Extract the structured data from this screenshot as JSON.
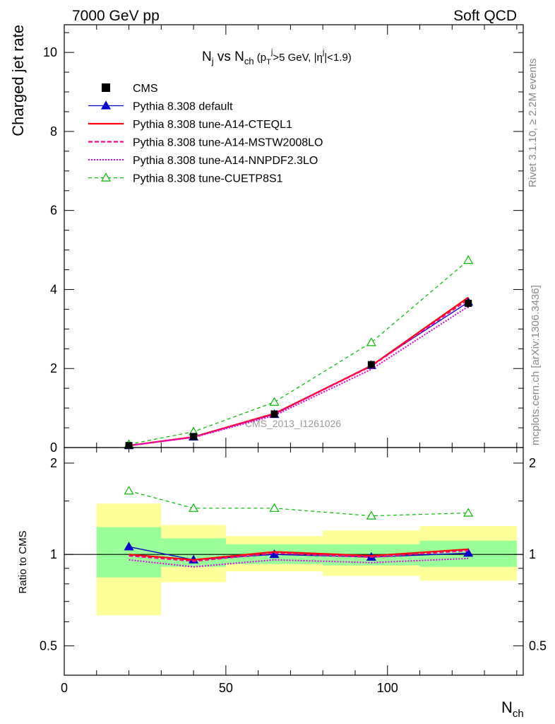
{
  "header": {
    "energy_label": "7000 GeV pp",
    "process_label": "Soft QCD"
  },
  "side_labels": {
    "rivet": "Rivet 3.1.10, ≥ 2.2M events",
    "mcplots": "mcplots.cern.ch [arXiv:1306.3436]"
  },
  "watermark": "CMS_2013_I1261026",
  "chart_data": [
    {
      "type": "line",
      "title_parts": {
        "n": "N",
        "j_sub": "j",
        "vs": " vs N",
        "ch_sub": "ch",
        "open": " (p",
        "t_sub": "T",
        "j_sup": "j",
        "gt": ">5 GeV, |η",
        "eta_sup": "j",
        "close": "|<1.9)"
      },
      "ylabel": "Charged jet rate",
      "xlim": [
        0,
        142
      ],
      "ylim": [
        0,
        10.7
      ],
      "y_ticks": [
        "0",
        "2",
        "4",
        "6",
        "8",
        "10"
      ],
      "x": [
        20,
        40,
        65,
        95,
        125
      ],
      "data": {
        "name": "CMS",
        "values": [
          0.05,
          0.28,
          0.85,
          2.1,
          3.65
        ],
        "errors": [
          0.01,
          0.02,
          0.04,
          0.08,
          0.12
        ]
      },
      "series": [
        {
          "name": "Pythia 8.308 default",
          "color": "#0000cc",
          "values": [
            0.053,
            0.27,
            0.84,
            2.08,
            3.68
          ]
        },
        {
          "name": "Pythia 8.308 tune-A14-CTEQL1",
          "color": "#ff0000",
          "values": [
            0.05,
            0.27,
            0.86,
            2.07,
            3.8
          ]
        },
        {
          "name": "Pythia 8.308 tune-A14-MSTW2008LO",
          "color": "#ff0088",
          "values": [
            0.049,
            0.265,
            0.85,
            2.06,
            3.75
          ]
        },
        {
          "name": "Pythia 8.308 tune-A14-NNPDF2.3LO",
          "color": "#dd00dd",
          "values": [
            0.048,
            0.255,
            0.81,
            1.98,
            3.57
          ]
        },
        {
          "name": "Pythia 8.308 tune-CUETP8S1",
          "color": "#00bb00",
          "values": [
            0.081,
            0.4,
            1.15,
            2.66,
            4.74
          ]
        }
      ]
    },
    {
      "type": "line",
      "ylabel": "Ratio to CMS",
      "xlabel_parts": {
        "n": "N",
        "ch_sub": "ch"
      },
      "xlim": [
        0,
        142
      ],
      "ylim": [
        0.4,
        2.25
      ],
      "log_y": true,
      "y_ticks": [
        "0.5",
        "1",
        "2"
      ],
      "x_ticks": [
        "0",
        "50",
        "100"
      ],
      "x": [
        20,
        40,
        65,
        95,
        125
      ],
      "bins": [
        [
          10,
          30
        ],
        [
          30,
          50
        ],
        [
          50,
          80
        ],
        [
          80,
          110
        ],
        [
          110,
          140
        ]
      ],
      "band_inner": [
        [
          0.84,
          1.23
        ],
        [
          0.91,
          1.13
        ],
        [
          0.93,
          1.08
        ],
        [
          0.92,
          1.08
        ],
        [
          0.91,
          1.11
        ]
      ],
      "band_outer": [
        [
          0.63,
          1.47
        ],
        [
          0.81,
          1.25
        ],
        [
          0.88,
          1.15
        ],
        [
          0.85,
          1.2
        ],
        [
          0.82,
          1.24
        ]
      ],
      "series": [
        {
          "name": "Pythia 8.308 default",
          "color": "#0000cc",
          "values": [
            1.06,
            0.96,
            1.0,
            0.98,
            1.01
          ]
        },
        {
          "name": "Pythia 8.308 tune-A14-CTEQL1",
          "color": "#ff0000",
          "values": [
            1.0,
            0.96,
            1.02,
            0.99,
            1.04
          ]
        },
        {
          "name": "Pythia 8.308 tune-A14-MSTW2008LO",
          "color": "#ff0088",
          "values": [
            0.99,
            0.95,
            1.01,
            0.98,
            1.03
          ]
        },
        {
          "name": "Pythia 8.308 tune-A14-NNPDF2.3LO",
          "color": "#dd00dd",
          "values": [
            0.96,
            0.91,
            0.96,
            0.94,
            0.97
          ]
        },
        {
          "name": "Pythia 8.308 tune-CUETP8S1",
          "color": "#00bb00",
          "values": [
            1.62,
            1.42,
            1.42,
            1.34,
            1.37
          ]
        }
      ]
    }
  ]
}
